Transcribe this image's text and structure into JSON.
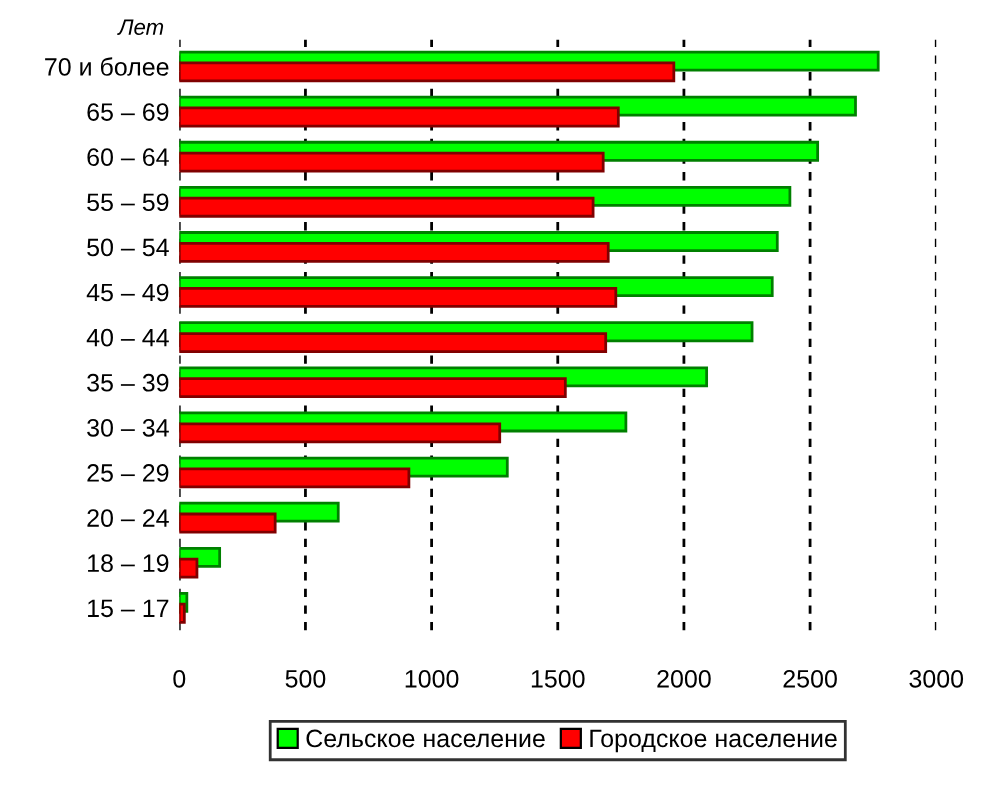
{
  "chart_data": {
    "type": "bar",
    "orientation": "horizontal",
    "categories": [
      "70 и более",
      "65 – 69",
      "60 – 64",
      "55 – 59",
      "50 – 54",
      "45 – 49",
      "40 – 44",
      "35 – 39",
      "30 – 34",
      "25 – 29",
      "20 – 24",
      "18 – 19",
      "15 – 17"
    ],
    "series": [
      {
        "name": "Сельское население",
        "color": "#00ff00",
        "values": [
          2770,
          2680,
          2530,
          2420,
          2370,
          2350,
          2270,
          2090,
          1770,
          1300,
          630,
          160,
          30
        ]
      },
      {
        "name": "Городское население",
        "color": "#ff0000",
        "values": [
          1960,
          1740,
          1680,
          1640,
          1700,
          1730,
          1690,
          1530,
          1270,
          910,
          380,
          70,
          20
        ]
      }
    ],
    "xlim": [
      0,
      3000
    ],
    "xticks": [
      0,
      500,
      1000,
      1500,
      2000,
      2500,
      3000
    ],
    "grid": "x",
    "legend": "bottom",
    "annotations": [
      "Лет"
    ]
  }
}
